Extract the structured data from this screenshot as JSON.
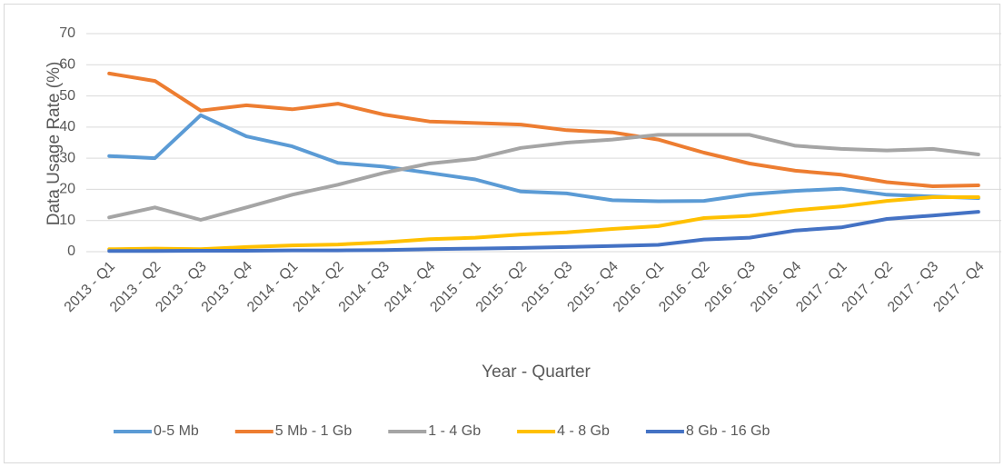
{
  "chart_data": {
    "type": "line",
    "x_label": "Year - Quarter",
    "y_label": "Data Usage Rate (%)",
    "categories": [
      "2013 - Q1",
      "2013 - Q2",
      "2013 - Q3",
      "2013 - Q4",
      "2014 - Q1",
      "2014 - Q2",
      "2014 - Q3",
      "2014 - Q4",
      "2015 - Q1",
      "2015 - Q2",
      "2015 - Q3",
      "2015 - Q4",
      "2016 - Q1",
      "2016 - Q2",
      "2016 - Q3",
      "2016 - Q4",
      "2017 - Q1",
      "2017 - Q2",
      "2017 - Q3",
      "2017 - Q4"
    ],
    "series": [
      {
        "name": "0-5 Mb",
        "color": "#5b9bd5",
        "values": [
          30.7,
          30,
          43.8,
          37,
          33.8,
          28.5,
          27.3,
          25.3,
          23.2,
          19.3,
          18.7,
          16.5,
          16.2,
          16.3,
          18.4,
          19.5,
          20.2,
          18.3,
          17.7,
          17.2
        ]
      },
      {
        "name": "5 Mb - 1 Gb",
        "color": "#ed7d31",
        "values": [
          57.2,
          54.8,
          45.3,
          47,
          45.7,
          47.5,
          44,
          41.8,
          41.3,
          40.8,
          39,
          38.3,
          36,
          31.8,
          28.3,
          26,
          24.7,
          22.3,
          21,
          21.3
        ]
      },
      {
        "name": "1 - 4 Gb",
        "color": "#a5a5a5",
        "values": [
          11,
          14.2,
          10.2,
          14.2,
          18.3,
          21.5,
          25.3,
          28.3,
          29.8,
          33.3,
          35,
          36,
          37.5,
          37.5,
          37.5,
          34,
          33,
          32.5,
          33,
          31.2
        ]
      },
      {
        "name": "4 - 8 Gb",
        "color": "#ffc000",
        "values": [
          0.8,
          1,
          0.8,
          1.5,
          2,
          2.3,
          3,
          4,
          4.5,
          5.5,
          6.2,
          7.3,
          8.2,
          10.8,
          11.5,
          13.3,
          14.5,
          16.3,
          17.5,
          17.5
        ]
      },
      {
        "name": "8 Gb - 16 Gb",
        "color": "#4472c4",
        "values": [
          0.2,
          0.2,
          0.3,
          0.3,
          0.4,
          0.4,
          0.5,
          0.8,
          1,
          1.2,
          1.5,
          1.8,
          2.2,
          3.9,
          4.5,
          6.8,
          7.8,
          10.5,
          11.6,
          12.8
        ]
      }
    ],
    "ylim": [
      0,
      70
    ],
    "yticks": [
      0,
      10,
      20,
      30,
      40,
      50,
      60,
      70
    ],
    "grid": true,
    "legend": "bottom"
  }
}
